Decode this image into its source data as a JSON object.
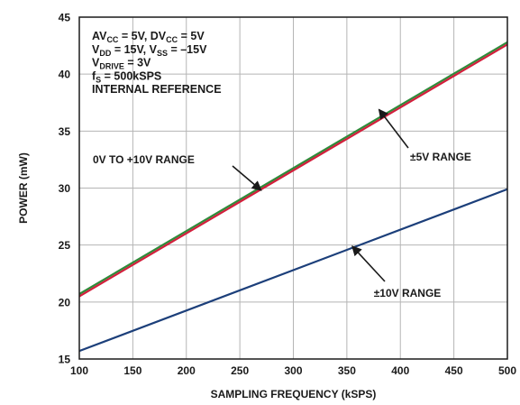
{
  "chart_data": {
    "type": "line",
    "xlabel": "SAMPLING FREQUENCY (kSPS)",
    "ylabel": "POWER (mW)",
    "xlim": [
      100,
      500
    ],
    "ylim": [
      15,
      45
    ],
    "x_ticks": [
      "100",
      "150",
      "200",
      "250",
      "300",
      "350",
      "400",
      "450",
      "500"
    ],
    "y_ticks": [
      "15",
      "20",
      "25",
      "30",
      "35",
      "40",
      "45"
    ],
    "grid": true,
    "x": [
      100,
      500
    ],
    "series": [
      {
        "name": "0V TO +10V RANGE",
        "color": "#d21f3c",
        "values": [
          20.5,
          42.6
        ]
      },
      {
        "name": "±5V RANGE",
        "color": "#2e8b3a",
        "values": [
          20.7,
          42.8
        ]
      },
      {
        "name": "±10V RANGE",
        "color": "#1c3f7a",
        "values": [
          15.7,
          29.9
        ]
      }
    ],
    "annotations": [
      {
        "text": "0V TO +10V RANGE",
        "points_to": [
          270,
          29.8
        ]
      },
      {
        "text": "±5V RANGE",
        "points_to": [
          380,
          36.9
        ]
      },
      {
        "text": "±10V RANGE",
        "points_to": [
          355,
          24.9
        ]
      }
    ],
    "conditions": [
      {
        "parts": [
          [
            "AV",
            ""
          ],
          [
            "CC",
            "sub"
          ],
          [
            " = 5V, DV",
            ""
          ],
          [
            "CC",
            "sub"
          ],
          [
            " = 5V",
            ""
          ]
        ]
      },
      {
        "parts": [
          [
            "V",
            ""
          ],
          [
            "DD",
            "sub"
          ],
          [
            " = 15V, V",
            ""
          ],
          [
            "SS",
            "sub"
          ],
          [
            " = –15V",
            ""
          ]
        ]
      },
      {
        "parts": [
          [
            "V",
            ""
          ],
          [
            "DRIVE",
            "sub"
          ],
          [
            " = 3V",
            ""
          ]
        ]
      },
      {
        "parts": [
          [
            "f",
            ""
          ],
          [
            "S",
            "sub"
          ],
          [
            " = 500kSPS",
            ""
          ]
        ]
      },
      {
        "parts": [
          [
            "INTERNAL REFERENCE",
            ""
          ]
        ]
      }
    ]
  }
}
